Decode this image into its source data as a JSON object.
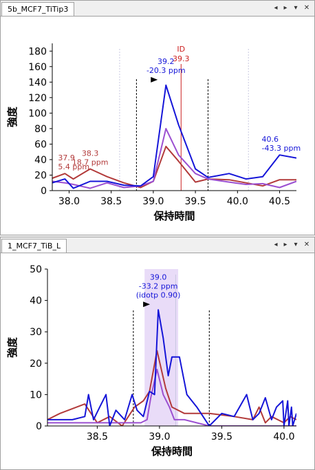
{
  "panes": [
    {
      "tab_label": "5b_MCF7_TiTip3",
      "controls": [
        "◂",
        "▸",
        "▾",
        "✕"
      ]
    },
    {
      "tab_label": "1_MCF7_TiB_L",
      "controls": [
        "◂",
        "▸",
        "▾",
        "✕"
      ]
    }
  ],
  "colors": {
    "blue": "#1515d8",
    "purple": "#9b4fd1",
    "brown": "#b23a3a",
    "id_line": "#cc2020",
    "highlight": "#e9dcf8"
  },
  "chart_data": [
    {
      "type": "line",
      "xlabel": "保持時間",
      "ylabel": "強度",
      "xlim": [
        37.8,
        40.7
      ],
      "ylim": [
        0,
        190
      ],
      "xticks": [
        38.0,
        38.5,
        39.0,
        39.5,
        40.0,
        40.5
      ],
      "xtick_labels": [
        "38.0",
        "38.5",
        "39.0",
        "39.5",
        "40.0",
        "40.5"
      ],
      "yticks": [
        0,
        20,
        40,
        60,
        80,
        100,
        120,
        140,
        160,
        180
      ],
      "ytick_labels": [
        "0",
        "20",
        "40",
        "60",
        "80",
        "100",
        "120",
        "140",
        "160",
        "180"
      ],
      "boundaries": [
        38.8,
        39.65
      ],
      "id_line": {
        "x": 39.33,
        "label": "ID",
        "value": "39.3"
      },
      "faint_lines": [
        38.6,
        40.13
      ],
      "series": [
        {
          "color": "blue",
          "points": [
            [
              37.8,
              10
            ],
            [
              37.95,
              15
            ],
            [
              38.05,
              3
            ],
            [
              38.25,
              12
            ],
            [
              38.45,
              12
            ],
            [
              38.65,
              7
            ],
            [
              38.85,
              6
            ],
            [
              39.0,
              18
            ],
            [
              39.15,
              136
            ],
            [
              39.3,
              85
            ],
            [
              39.5,
              28
            ],
            [
              39.65,
              17
            ],
            [
              39.9,
              22
            ],
            [
              40.1,
              15
            ],
            [
              40.3,
              18
            ],
            [
              40.5,
              46
            ],
            [
              40.7,
              42
            ]
          ]
        },
        {
          "color": "purple",
          "points": [
            [
              37.8,
              12
            ],
            [
              37.95,
              10
            ],
            [
              38.05,
              8
            ],
            [
              38.25,
              3
            ],
            [
              38.45,
              10
            ],
            [
              38.65,
              4
            ],
            [
              38.85,
              6
            ],
            [
              39.0,
              12
            ],
            [
              39.15,
              80
            ],
            [
              39.3,
              46
            ],
            [
              39.5,
              22
            ],
            [
              39.65,
              15
            ],
            [
              39.9,
              11
            ],
            [
              40.1,
              8
            ],
            [
              40.3,
              9
            ],
            [
              40.5,
              4
            ],
            [
              40.7,
              12
            ]
          ]
        },
        {
          "color": "brown",
          "points": [
            [
              37.8,
              16
            ],
            [
              37.95,
              22
            ],
            [
              38.05,
              15
            ],
            [
              38.25,
              28
            ],
            [
              38.45,
              18
            ],
            [
              38.65,
              10
            ],
            [
              38.85,
              4
            ],
            [
              39.0,
              12
            ],
            [
              39.15,
              57
            ],
            [
              39.3,
              38
            ],
            [
              39.5,
              11
            ],
            [
              39.65,
              15
            ],
            [
              39.9,
              14
            ],
            [
              40.1,
              10
            ],
            [
              40.3,
              6
            ],
            [
              40.5,
              14
            ],
            [
              40.7,
              14
            ]
          ]
        }
      ],
      "peak_labels": [
        {
          "color": "blue",
          "lines": [
            "39.2",
            "-20.3 ppm"
          ],
          "x": 39.15,
          "y": 136,
          "marker": true
        },
        {
          "color": "blue",
          "lines": [
            "40.6",
            "-43.3 ppm"
          ],
          "x": 40.5,
          "y": 46
        },
        {
          "color": "brown",
          "lines": [
            "38.3",
            "18.7 ppm"
          ],
          "x": 38.25,
          "y": 28
        },
        {
          "color": "brown",
          "lines": [
            "37.9",
            "5.4 ppm"
          ],
          "x": 37.95,
          "y": 22
        }
      ]
    },
    {
      "type": "line",
      "xlabel": "保持時間",
      "ylabel": "強度",
      "xlim": [
        38.1,
        40.1
      ],
      "ylim": [
        0,
        50
      ],
      "xticks": [
        38.5,
        39.0,
        39.5,
        40.0
      ],
      "xtick_labels": [
        "38.5",
        "39.0",
        "39.5",
        "40.0"
      ],
      "yticks": [
        0,
        10,
        20,
        30,
        40,
        50
      ],
      "ytick_labels": [
        "0",
        "10",
        "20",
        "30",
        "40",
        "50"
      ],
      "boundaries": [
        38.79,
        39.4
      ],
      "highlight": [
        38.88,
        39.15
      ],
      "faint_lines": [
        39.13
      ],
      "series": [
        {
          "color": "blue",
          "points": [
            [
              38.1,
              2
            ],
            [
              38.2,
              2
            ],
            [
              38.3,
              2
            ],
            [
              38.4,
              3
            ],
            [
              38.43,
              10
            ],
            [
              38.47,
              2
            ],
            [
              38.52,
              6
            ],
            [
              38.57,
              10
            ],
            [
              38.6,
              0
            ],
            [
              38.65,
              5
            ],
            [
              38.72,
              2
            ],
            [
              38.78,
              10
            ],
            [
              38.82,
              5
            ],
            [
              38.87,
              3
            ],
            [
              38.92,
              11
            ],
            [
              38.96,
              10
            ],
            [
              38.99,
              37
            ],
            [
              39.03,
              28
            ],
            [
              39.07,
              16
            ],
            [
              39.1,
              22
            ],
            [
              39.16,
              22
            ],
            [
              39.22,
              10
            ],
            [
              39.3,
              6
            ],
            [
              39.4,
              0
            ],
            [
              39.5,
              4
            ],
            [
              39.6,
              3
            ],
            [
              39.7,
              10
            ],
            [
              39.75,
              2
            ],
            [
              39.8,
              4
            ],
            [
              39.85,
              9
            ],
            [
              39.9,
              2
            ],
            [
              39.94,
              6
            ],
            [
              39.99,
              8
            ],
            [
              40.0,
              0
            ],
            [
              40.03,
              8
            ],
            [
              40.04,
              0
            ],
            [
              40.06,
              6
            ],
            [
              40.07,
              0
            ],
            [
              40.1,
              4
            ]
          ]
        },
        {
          "color": "purple",
          "points": [
            [
              38.1,
              1
            ],
            [
              38.3,
              1
            ],
            [
              38.5,
              1
            ],
            [
              38.7,
              1
            ],
            [
              38.85,
              1
            ],
            [
              38.9,
              2
            ],
            [
              38.93,
              9
            ],
            [
              38.98,
              18
            ],
            [
              39.03,
              10
            ],
            [
              39.08,
              6
            ],
            [
              39.12,
              2
            ],
            [
              39.2,
              2
            ],
            [
              39.4,
              0
            ],
            [
              39.6,
              0
            ],
            [
              39.8,
              0
            ],
            [
              40.0,
              0
            ],
            [
              40.1,
              0
            ]
          ]
        },
        {
          "color": "brown",
          "points": [
            [
              38.1,
              2
            ],
            [
              38.2,
              4
            ],
            [
              38.4,
              7
            ],
            [
              38.5,
              1
            ],
            [
              38.6,
              3
            ],
            [
              38.7,
              0
            ],
            [
              38.8,
              6
            ],
            [
              38.87,
              8
            ],
            [
              38.92,
              11
            ],
            [
              38.98,
              24
            ],
            [
              39.05,
              12
            ],
            [
              39.1,
              6
            ],
            [
              39.2,
              4
            ],
            [
              39.4,
              4
            ],
            [
              39.6,
              3
            ],
            [
              39.75,
              2
            ],
            [
              39.8,
              6
            ],
            [
              39.85,
              1
            ],
            [
              39.9,
              3
            ],
            [
              40.0,
              1
            ],
            [
              40.05,
              3
            ],
            [
              40.1,
              2
            ]
          ]
        }
      ],
      "peak_labels": [
        {
          "color": "blue",
          "lines": [
            "39.0",
            "-33.2 ppm",
            "(idotp 0.90)"
          ],
          "x": 38.99,
          "y": 37,
          "marker": true
        }
      ]
    }
  ]
}
